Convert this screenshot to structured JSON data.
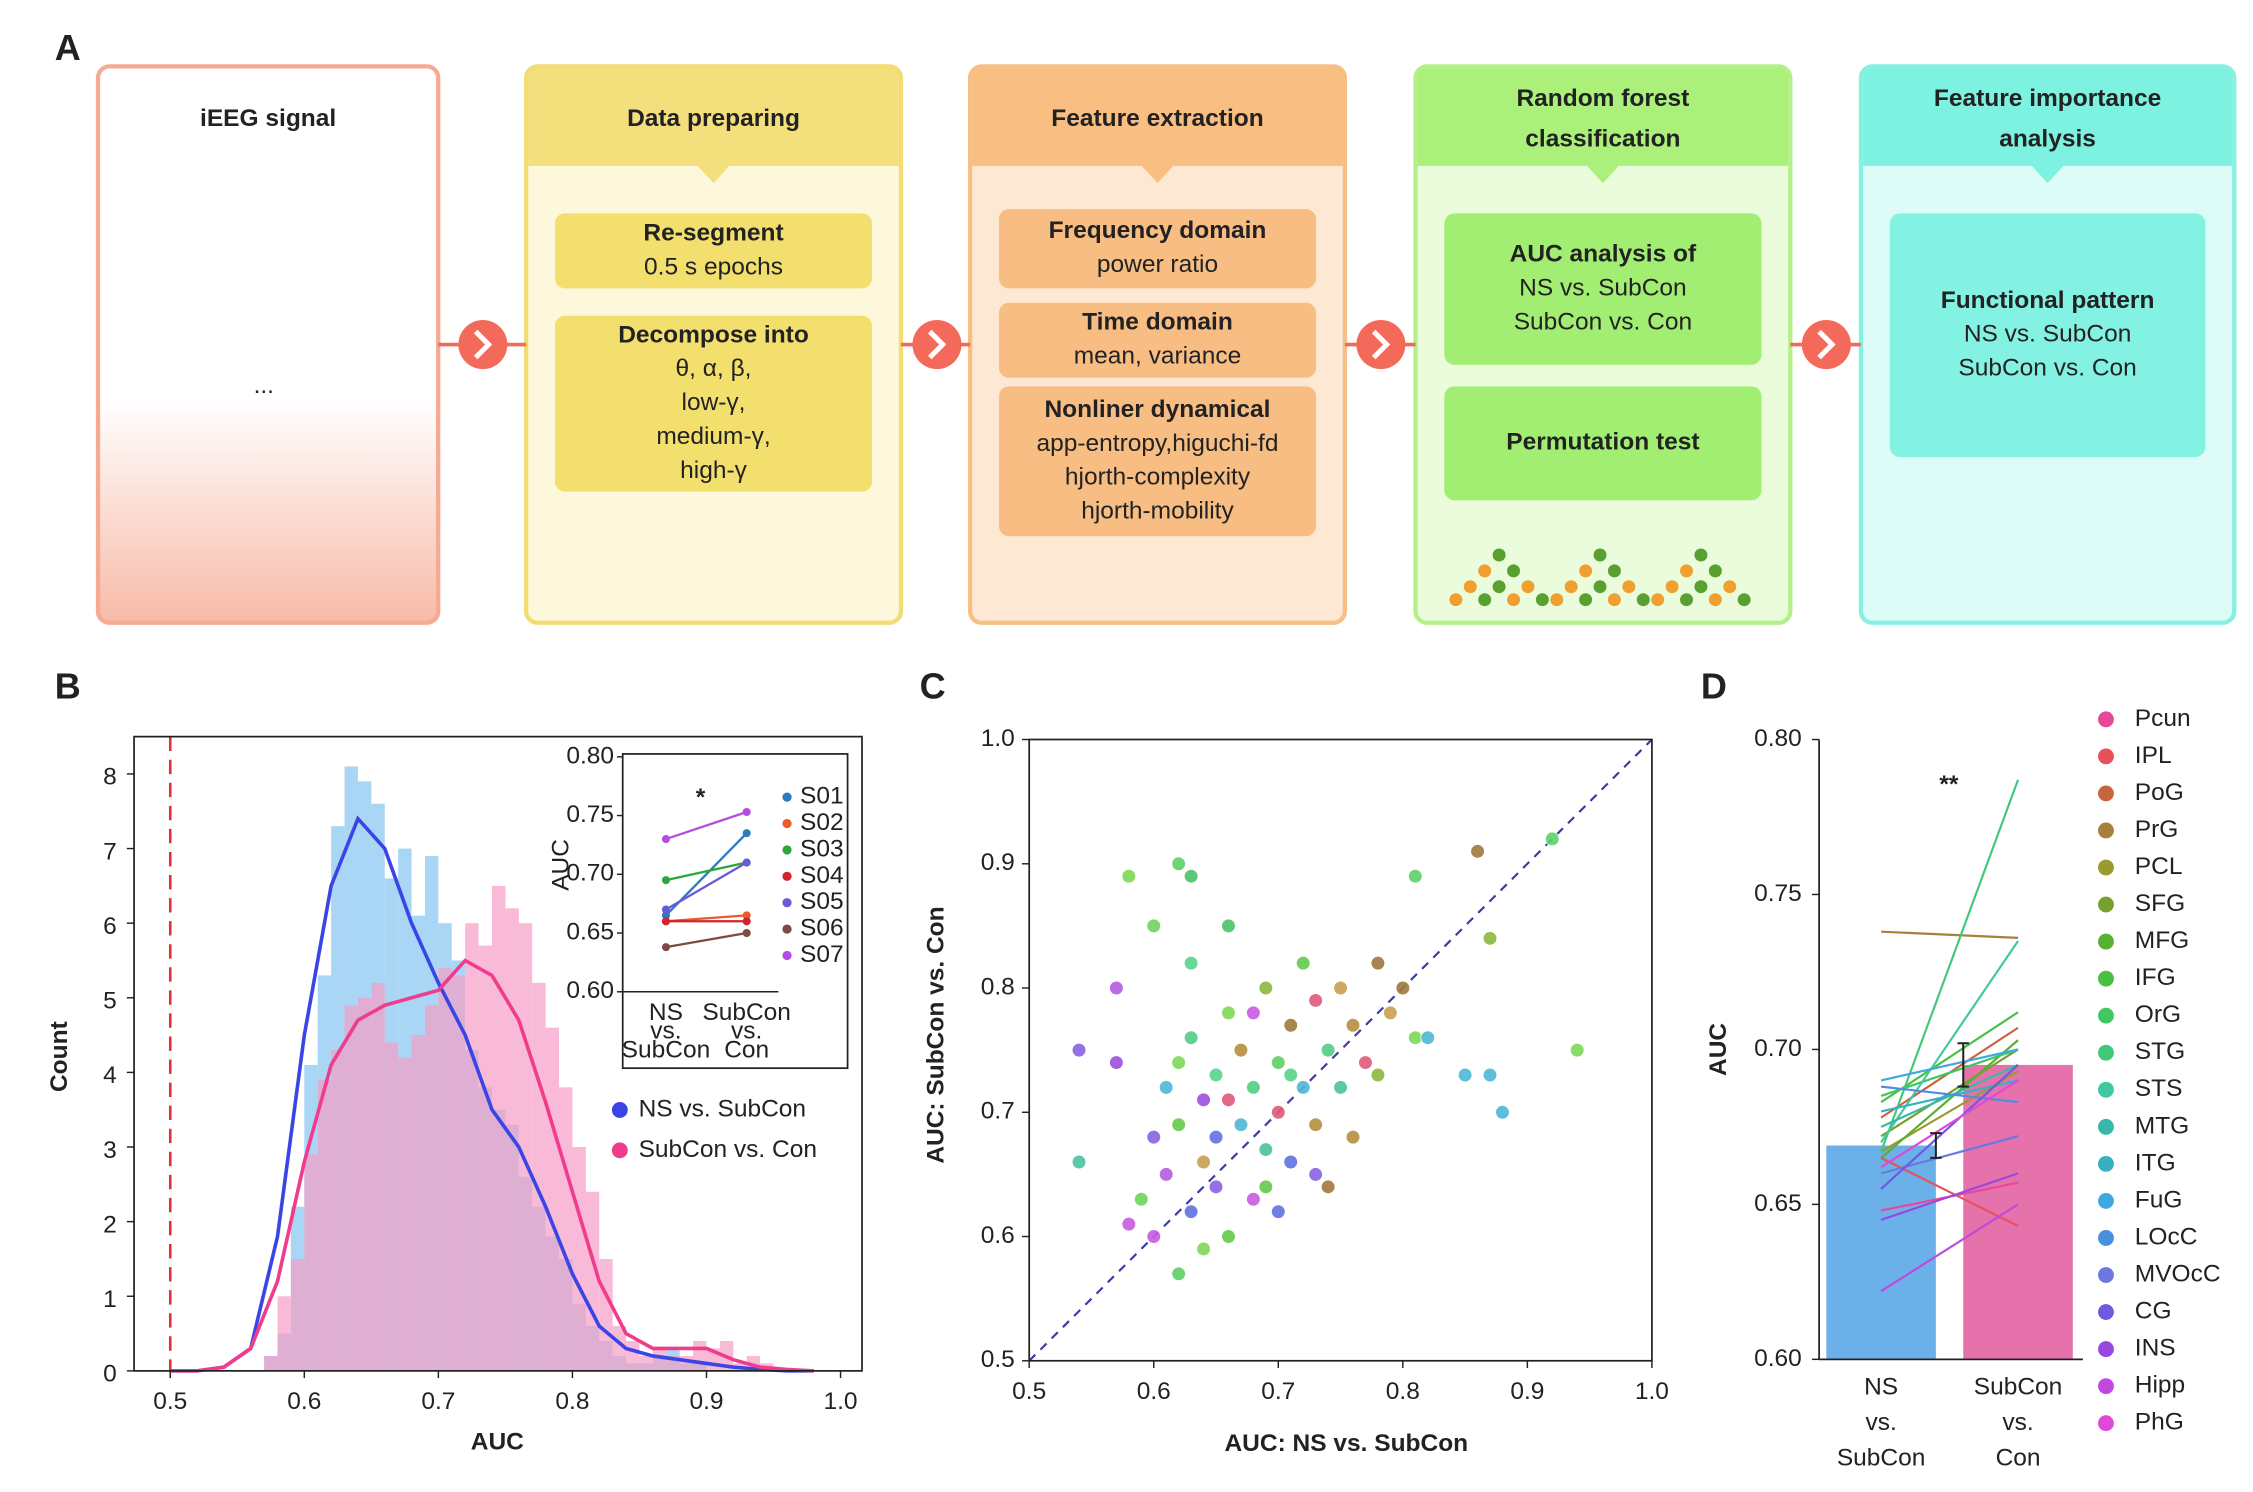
{
  "panel_labels": [
    "A",
    "B",
    "C",
    "D"
  ],
  "pipeline": {
    "ellipsis": "...",
    "steps": [
      {
        "title": [
          "iEEG signal"
        ],
        "boxes": []
      },
      {
        "title": [
          "Data preparing"
        ],
        "boxes": [
          [
            "Re-segment",
            "0.5 s epochs"
          ],
          [
            "Decompose into",
            "θ, α, β,",
            "low-γ,",
            "medium-γ,",
            "high-γ"
          ]
        ]
      },
      {
        "title": [
          "Feature extraction"
        ],
        "boxes": [
          [
            "Frequency domain",
            "power ratio"
          ],
          [
            "Time domain",
            "mean, variance"
          ],
          [
            "Nonliner dynamical",
            "app-entropy,higuchi-fd",
            "hjorth-complexity",
            "hjorth-mobility"
          ]
        ]
      },
      {
        "title": [
          "Random forest",
          "classification"
        ],
        "boxes": [
          [
            "AUC analysis of",
            "NS vs. SubCon",
            "SubCon vs. Con"
          ],
          [
            "Permutation test"
          ]
        ]
      },
      {
        "title": [
          "Feature importance",
          "analysis"
        ],
        "boxes": [
          [
            "Functional pattern",
            "NS vs. SubCon",
            "SubCon vs. Con"
          ]
        ]
      }
    ]
  },
  "chart_data": [
    {
      "type": "histogram",
      "xlabel": "AUC",
      "ylabel": "Count",
      "xlim": [
        0.473,
        1.016
      ],
      "ylim": [
        0,
        8.5
      ],
      "xticks": [
        0.5,
        0.6,
        0.7,
        0.8,
        0.9,
        {
          "value": 1,
          "label": "1.0"
        }
      ],
      "yticks": [
        0,
        1,
        2,
        3,
        4,
        5,
        6,
        7,
        8
      ],
      "reference_line": 0.5,
      "bins": [
        0.56,
        0.57,
        0.58,
        0.59,
        0.6,
        0.61,
        0.62,
        0.63,
        0.64,
        0.65,
        0.66,
        0.67,
        0.68,
        0.69,
        0.7,
        0.71,
        0.72,
        0.73,
        0.74,
        0.75,
        0.76,
        0.77,
        0.78,
        0.79,
        0.8,
        0.81,
        0.82,
        0.83,
        0.84,
        0.85,
        0.86,
        0.87,
        0.88,
        0.89,
        0.9,
        0.91,
        0.92,
        0.93,
        0.94,
        0.95,
        0.96
      ],
      "kde_x": [
        0.5,
        0.52,
        0.54,
        0.56,
        0.58,
        0.6,
        0.62,
        0.64,
        0.66,
        0.68,
        0.7,
        0.72,
        0.74,
        0.76,
        0.78,
        0.8,
        0.82,
        0.84,
        0.86,
        0.88,
        0.9,
        0.92,
        0.94,
        0.96,
        0.98
      ],
      "series": [
        {
          "name": "NS vs. SubCon",
          "color": "#3a45e6",
          "hist_color": "#86c4f2",
          "values": [
            0,
            0.2,
            0.5,
            2.2,
            4.1,
            5.3,
            7.3,
            8.1,
            7.9,
            7.6,
            6.6,
            7.0,
            6.1,
            6.9,
            6.0,
            5.5,
            4.3,
            3.8,
            3.5,
            3.3,
            2.6,
            2.2,
            1.8,
            1.5,
            0.9,
            0.6,
            0.4,
            0.2,
            0.1,
            0.1,
            0.2,
            0.3,
            0.1,
            0.1,
            0,
            0,
            0,
            0,
            0,
            0
          ],
          "kde": [
            0,
            0,
            0.05,
            0.3,
            1.8,
            4.5,
            6.5,
            7.4,
            7.0,
            6.0,
            5.2,
            4.5,
            3.5,
            3.0,
            2.2,
            1.3,
            0.6,
            0.3,
            0.2,
            0.15,
            0.1,
            0.05,
            0.02,
            0,
            0
          ]
        },
        {
          "name": "SubCon vs. Con",
          "color": "#f03c8c",
          "hist_color": "#f59cc4",
          "values": [
            0,
            0.2,
            1.0,
            1.5,
            2.9,
            3.9,
            4.3,
            4.9,
            5.0,
            5.2,
            4.4,
            4.2,
            4.5,
            4.9,
            5.4,
            5.3,
            6.0,
            5.7,
            6.5,
            6.2,
            6.0,
            5.2,
            4.6,
            3.8,
            3.0,
            2.4,
            1.5,
            0.6,
            0.4,
            0.2,
            0.3,
            0.2,
            0.2,
            0.4,
            0.3,
            0.4,
            0.1,
            0.2,
            0.1,
            0
          ],
          "kde": [
            0,
            0,
            0.05,
            0.3,
            1.2,
            2.8,
            4.1,
            4.7,
            4.9,
            5.0,
            5.1,
            5.5,
            5.3,
            4.7,
            3.6,
            2.4,
            1.2,
            0.5,
            0.3,
            0.3,
            0.3,
            0.15,
            0.05,
            0.02,
            0
          ]
        }
      ]
    },
    {
      "type": "line",
      "ylabel": "AUC",
      "annotation": "*",
      "categories": [
        [
          "NS",
          "vs.",
          "SubCon"
        ],
        [
          "SubCon",
          "vs.",
          "Con"
        ]
      ],
      "ylim": [
        0.6,
        0.8
      ],
      "yticks": [
        {
          "value": 0.6,
          "label": "0.60"
        },
        0.65,
        {
          "value": 0.7,
          "label": "0.70"
        },
        0.75,
        {
          "value": 0.8,
          "label": "0.80"
        }
      ],
      "series": [
        {
          "name": "S01",
          "color": "#2a7bc0",
          "values": [
            0.665,
            0.735
          ]
        },
        {
          "name": "S02",
          "color": "#ea5a2a",
          "values": [
            0.66,
            0.665
          ]
        },
        {
          "name": "S03",
          "color": "#2ca83a",
          "values": [
            0.695,
            0.71
          ]
        },
        {
          "name": "S04",
          "color": "#d0242c",
          "values": [
            0.66,
            0.66
          ]
        },
        {
          "name": "S05",
          "color": "#6a5ad8",
          "values": [
            0.67,
            0.71
          ]
        },
        {
          "name": "S06",
          "color": "#7d4a44",
          "values": [
            0.638,
            0.65
          ]
        },
        {
          "name": "S07",
          "color": "#b44ce0",
          "values": [
            0.73,
            0.753
          ]
        }
      ]
    },
    {
      "type": "scatter",
      "xlabel": "AUC: NS vs. SubCon",
      "ylabel": "AUC: SubCon vs. Con",
      "xlim": [
        0.5,
        1
      ],
      "ylim": [
        0.5,
        1
      ],
      "diagonal": true,
      "xticks": [
        0.5,
        0.6,
        0.7,
        0.8,
        0.9,
        {
          "value": 1,
          "label": "1.0"
        }
      ],
      "yticks": [
        0.5,
        0.6,
        0.7,
        0.8,
        0.9,
        {
          "value": 1,
          "label": "1.0"
        }
      ],
      "x": [
        0.58,
        0.62,
        0.63,
        0.6,
        0.63,
        0.66,
        0.54,
        0.57,
        0.57,
        0.54,
        0.58,
        0.59,
        0.6,
        0.61,
        0.61,
        0.62,
        0.63,
        0.63,
        0.64,
        0.64,
        0.65,
        0.65,
        0.66,
        0.66,
        0.67,
        0.67,
        0.68,
        0.68,
        0.69,
        0.69,
        0.7,
        0.7,
        0.71,
        0.71,
        0.72,
        0.72,
        0.73,
        0.73,
        0.74,
        0.74,
        0.75,
        0.75,
        0.76,
        0.77,
        0.78,
        0.78,
        0.79,
        0.8,
        0.81,
        0.81,
        0.82,
        0.86,
        0.87,
        0.92,
        0.94,
        0.85,
        0.87,
        0.88,
        0.62,
        0.64,
        0.6,
        0.7,
        0.76,
        0.68,
        0.65,
        0.62,
        0.73,
        0.66,
        0.71,
        0.69
      ],
      "y": [
        0.89,
        0.9,
        0.89,
        0.85,
        0.82,
        0.85,
        0.75,
        0.8,
        0.74,
        0.66,
        0.61,
        0.63,
        0.68,
        0.72,
        0.65,
        0.69,
        0.62,
        0.76,
        0.66,
        0.71,
        0.73,
        0.64,
        0.6,
        0.78,
        0.69,
        0.75,
        0.72,
        0.63,
        0.8,
        0.67,
        0.74,
        0.7,
        0.77,
        0.66,
        0.82,
        0.72,
        0.69,
        0.79,
        0.75,
        0.64,
        0.72,
        0.8,
        0.77,
        0.74,
        0.82,
        0.73,
        0.78,
        0.8,
        0.76,
        0.89,
        0.76,
        0.91,
        0.84,
        0.92,
        0.75,
        0.73,
        0.73,
        0.7,
        0.57,
        0.59,
        0.6,
        0.62,
        0.68,
        0.78,
        0.68,
        0.74,
        0.65,
        0.71,
        0.73,
        0.64
      ],
      "colors": [
        "#7ed957",
        "#5fd068",
        "#4cc36a",
        "#6fd45a",
        "#5ad38b",
        "#4cc36a",
        "#8a63e0",
        "#b45de0",
        "#9b4fdc",
        "#4cc3a0",
        "#c85ce0",
        "#6fd45a",
        "#8a63e0",
        "#4fb8d6",
        "#b45de0",
        "#66c94a",
        "#6072e0",
        "#55cc88",
        "#c8a050",
        "#9b4fdc",
        "#5ad38b",
        "#8a63e0",
        "#66c94a",
        "#7ed957",
        "#4fb8d6",
        "#b8903e",
        "#55cc88",
        "#c85ce0",
        "#8fb840",
        "#4cc3a0",
        "#5fd068",
        "#e05a7a",
        "#a07a3c",
        "#6072e0",
        "#66c94a",
        "#4fb8d6",
        "#b8903e",
        "#e05a7a",
        "#55cc88",
        "#a07a3c",
        "#4cc3a0",
        "#c8a050",
        "#b8903e",
        "#e05a7a",
        "#a07a3c",
        "#8fb840",
        "#c8a050",
        "#a07a3c",
        "#7ed957",
        "#5fd068",
        "#4fb8d6",
        "#a07a3c",
        "#8fb840",
        "#5fd068",
        "#7ed957",
        "#4fb8d6",
        "#4fb8d6",
        "#4fb8d6",
        "#5fd068",
        "#7ed957",
        "#c85ce0",
        "#6072e0",
        "#b8903e",
        "#c85ce0",
        "#6072e0",
        "#7ed957",
        "#8a63e0",
        "#e05a7a",
        "#5ad38b",
        "#66c94a"
      ]
    },
    {
      "type": "bar",
      "ylabel": "AUC",
      "annotation": "**",
      "categories": [
        [
          "NS",
          "vs.",
          "SubCon"
        ],
        [
          "SubCon",
          "vs.",
          "Con"
        ]
      ],
      "values": [
        0.669,
        0.695
      ],
      "errors": [
        0.004,
        0.007
      ],
      "colors": [
        "#6cb0ea",
        "#e572ab"
      ],
      "ylim": [
        0.6,
        0.8
      ],
      "yticks": [
        {
          "value": 0.6,
          "label": "0.60"
        },
        0.65,
        {
          "value": 0.7,
          "label": "0.70"
        },
        0.75,
        {
          "value": 0.8,
          "label": "0.80"
        }
      ],
      "series": [
        {
          "name": "Pcun",
          "color": "#e8489a",
          "values": [
            0.648,
            0.657
          ]
        },
        {
          "name": "IPL",
          "color": "#e8505a",
          "values": [
            0.665,
            0.643
          ]
        },
        {
          "name": "PoG",
          "color": "#c8643c",
          "values": [
            0.678,
            0.707
          ]
        },
        {
          "name": "PrG",
          "color": "#a8803c",
          "values": [
            0.738,
            0.736
          ]
        },
        {
          "name": "PCL",
          "color": "#9a9a30",
          "values": [
            0.667,
            0.693
          ]
        },
        {
          "name": "SFG",
          "color": "#78a030",
          "values": [
            0.672,
            0.7
          ]
        },
        {
          "name": "MFG",
          "color": "#58b030",
          "values": [
            0.665,
            0.703
          ]
        },
        {
          "name": "IFG",
          "color": "#48c040",
          "values": [
            0.683,
            0.712
          ]
        },
        {
          "name": "OrG",
          "color": "#40c860",
          "values": [
            0.685,
            0.7
          ]
        },
        {
          "name": "STG",
          "color": "#40c878",
          "values": [
            0.667,
            0.787
          ]
        },
        {
          "name": "STS",
          "color": "#40c8a0",
          "values": [
            0.67,
            0.735
          ]
        },
        {
          "name": "MTG",
          "color": "#38b8a8",
          "values": [
            0.675,
            0.695
          ]
        },
        {
          "name": "ITG",
          "color": "#38b0c0",
          "values": [
            0.68,
            0.69
          ]
        },
        {
          "name": "FuG",
          "color": "#40a8e0",
          "values": [
            0.69,
            0.7
          ]
        },
        {
          "name": "LOcC",
          "color": "#4a8ee0",
          "values": [
            0.688,
            0.683
          ]
        },
        {
          "name": "MVOcC",
          "color": "#6a78e0",
          "values": [
            0.66,
            0.672
          ]
        },
        {
          "name": "CG",
          "color": "#7058e0",
          "values": [
            0.655,
            0.695
          ]
        },
        {
          "name": "INS",
          "color": "#9848e0",
          "values": [
            0.645,
            0.66
          ]
        },
        {
          "name": "Hipp",
          "color": "#c048e0",
          "values": [
            0.622,
            0.65
          ]
        },
        {
          "name": "PhG",
          "color": "#e048d8",
          "values": [
            0.662,
            0.69
          ]
        }
      ]
    }
  ]
}
